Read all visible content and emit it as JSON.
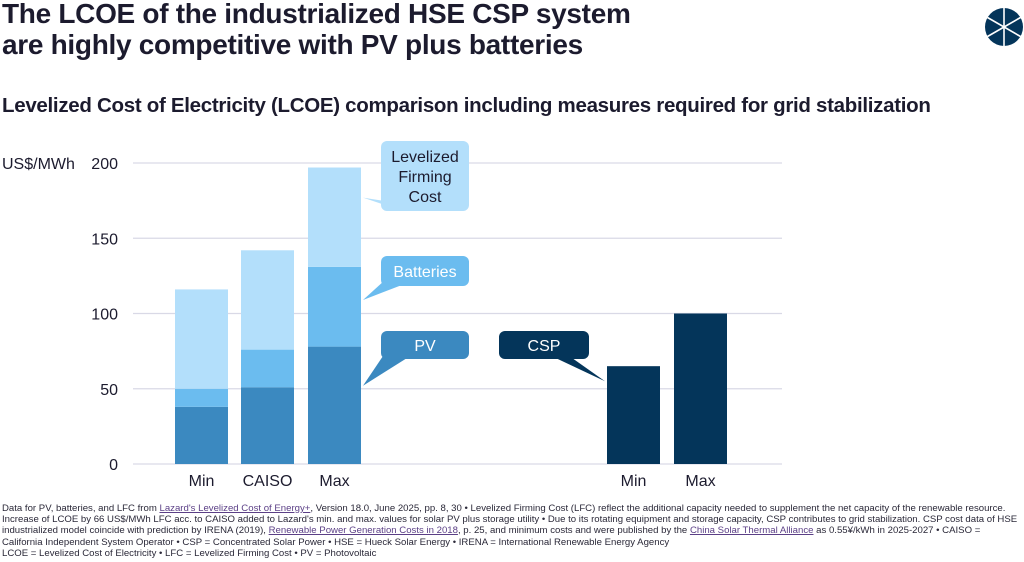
{
  "header": {
    "title_line1": "The LCOE of the industrialized HSE CSP system",
    "title_line2": "are highly competitive with PV plus batteries",
    "subtitle": "Levelized Cost of Electricity (LCOE) comparison including measures required for grid stabilization",
    "logo_icon": "segmented-circle-logo-icon"
  },
  "colors": {
    "pv": "#3b89c0",
    "batteries": "#6bbcef",
    "lfc": "#b3dffb",
    "csp": "#04355a",
    "grid": "#d9d9e6",
    "text": "#1c1b2e"
  },
  "chart_data": {
    "type": "bar",
    "title": "Levelized Cost of Electricity (LCOE) comparison including measures required for grid stabilization",
    "ylabel": "US$/MWh",
    "xlabel": "",
    "ylim": [
      0,
      200
    ],
    "yticks": [
      0,
      50,
      100,
      150,
      200
    ],
    "grid": true,
    "groups": [
      {
        "name": "PV plus batteries",
        "stacked": true,
        "categories": [
          "Min",
          "CAISO",
          "Max"
        ],
        "series": [
          {
            "name": "PV",
            "color": "#3b89c0",
            "values": [
              38,
              51,
              78
            ]
          },
          {
            "name": "Batteries",
            "color": "#6bbcef",
            "values": [
              12,
              25,
              53
            ]
          },
          {
            "name": "Levelized Firming Cost",
            "color": "#b3dffb",
            "values": [
              66,
              66,
              66
            ]
          }
        ],
        "totals": [
          116,
          142,
          197
        ]
      },
      {
        "name": "CSP",
        "stacked": false,
        "categories": [
          "Min",
          "Max"
        ],
        "series": [
          {
            "name": "CSP",
            "color": "#04355a",
            "values": [
              65,
              100
            ]
          }
        ]
      }
    ],
    "annotations": [
      {
        "label": "Levelized Firming Cost",
        "lines": [
          "Levelized",
          "Firming",
          "Cost"
        ],
        "points_to": "Max LFC segment"
      },
      {
        "label": "Batteries",
        "lines": [
          "Batteries"
        ],
        "points_to": "Max Batteries segment"
      },
      {
        "label": "PV",
        "lines": [
          "PV"
        ],
        "points_to": "Max PV segment"
      },
      {
        "label": "CSP",
        "lines": [
          "CSP"
        ],
        "points_to": "CSP Min bar"
      }
    ]
  },
  "footnote": {
    "p1": "Data for PV, batteries, and LFC from ",
    "link1": "Lazard's Levelized Cost of Energy+",
    "p2": ", Version 18.0, June 2025, pp. 8, 30 • Levelized Firming Cost (LFC) reflect the additional capacity needed to supplement the net capacity of the renewable resource. Increase of LCOE by 66 US$/MWh LFC acc. to CAISO added to Lazard's min. and max. values for solar PV plus storage utility • Due to its rotating equipment and storage capacity, CSP contributes to grid stabilization. CSP cost data of HSE industrialized model coincide with prediction by IRENA (2019), ",
    "link2": "Renewable Power Generation Costs in 2018",
    "p3": ", p. 25, and  minimum costs and were published by the ",
    "link3": "China Solar Thermal Alliance",
    "p4": " as 0.55¥/kWh in 2025-2027 • CAISO = California Independent System Operator • CSP = Concentrated Solar Power • HSE = Hueck Solar Energy • IRENA = International Renewable Energy Agency",
    "p5": "LCOE = Levelized Cost of Electricity • LFC = Levelized Firming Cost • PV = Photovoltaic"
  }
}
